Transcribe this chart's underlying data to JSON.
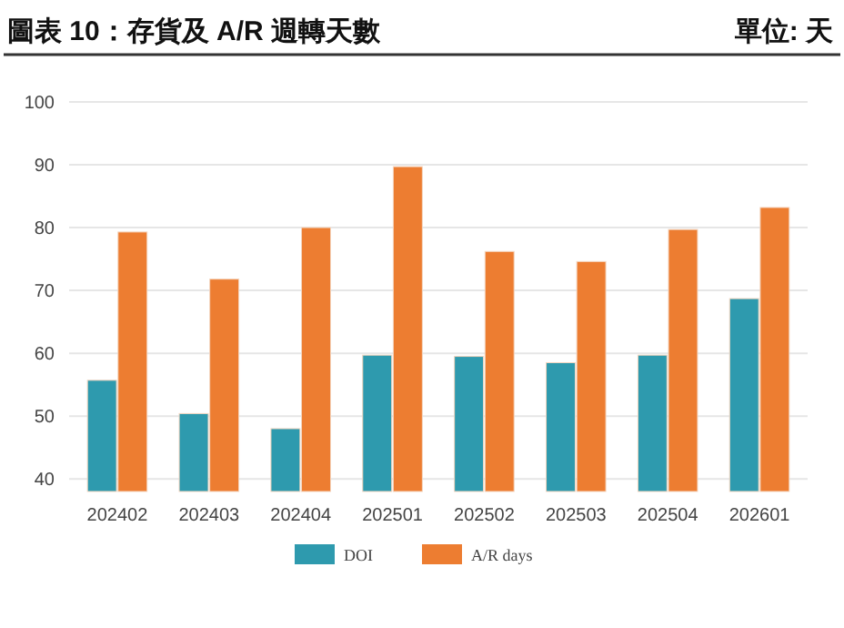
{
  "chart_data": {
    "type": "bar",
    "title": "圖表 10：存貨及 A/R 週轉天數",
    "annotations": [
      "單位: 天"
    ],
    "categories": [
      "202402",
      "202403",
      "202404",
      "202501",
      "202502",
      "202503",
      "202504",
      "202601"
    ],
    "series": [
      {
        "name": "DOI",
        "color": "#2e9aae",
        "values": [
          55.7,
          50.4,
          48.0,
          59.7,
          59.5,
          58.5,
          59.7,
          68.7
        ]
      },
      {
        "name": "A/R days",
        "color": "#ed7d31",
        "values": [
          79.3,
          71.8,
          80.0,
          89.7,
          76.2,
          74.6,
          79.7,
          83.2
        ]
      }
    ],
    "ylim": [
      38,
      100
    ],
    "yticks": [
      40,
      50,
      60,
      70,
      80,
      90,
      100
    ],
    "grid": "y",
    "legend": "bottom"
  }
}
